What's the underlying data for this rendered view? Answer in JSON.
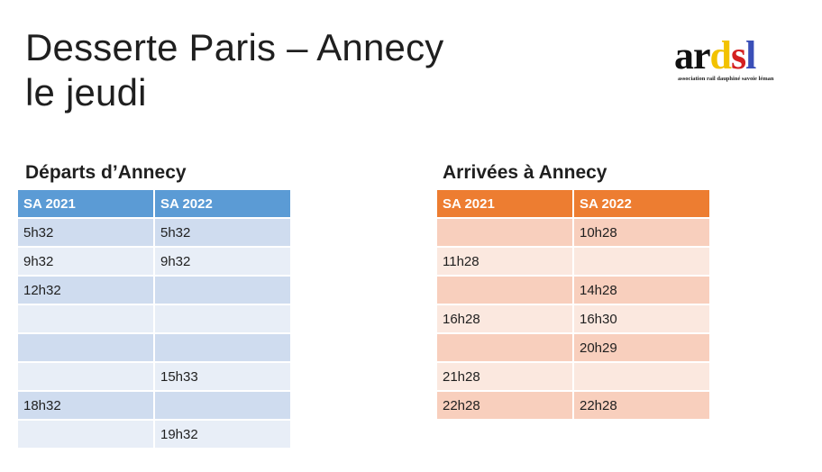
{
  "title": {
    "line1": "Desserte Paris – Annecy",
    "line2": "le jeudi"
  },
  "logo": {
    "letters": [
      "a",
      "r",
      "d",
      "s",
      "l"
    ],
    "letter_colors": [
      "#111111",
      "#111111",
      "#f2c200",
      "#d42020",
      "#3a4fb8"
    ],
    "tagline": "association rail dauphiné savoie léman"
  },
  "departures": {
    "heading": "Départs d’Annecy",
    "columns": [
      "SA 2021",
      "SA 2022"
    ],
    "rows": [
      [
        "5h32",
        "5h32"
      ],
      [
        "9h32",
        "9h32"
      ],
      [
        "12h32",
        ""
      ],
      [
        "",
        ""
      ],
      [
        "",
        ""
      ],
      [
        "",
        "15h33"
      ],
      [
        "18h32",
        ""
      ],
      [
        "",
        "19h32"
      ]
    ],
    "colors": {
      "header": "#5b9bd5",
      "row_dark": "#cfdcef",
      "row_light": "#e8eef7"
    }
  },
  "arrivals": {
    "heading": "Arrivées à Annecy",
    "columns": [
      "SA 2021",
      "SA 2022"
    ],
    "rows": [
      [
        "",
        "10h28"
      ],
      [
        "11h28",
        ""
      ],
      [
        "",
        "14h28"
      ],
      [
        "16h28",
        "16h30"
      ],
      [
        "",
        "20h29"
      ],
      [
        "21h28",
        ""
      ],
      [
        "22h28",
        "22h28"
      ]
    ],
    "colors": {
      "header": "#ed7d31",
      "row_dark": "#f8cfbd",
      "row_light": "#fbe8df"
    }
  }
}
